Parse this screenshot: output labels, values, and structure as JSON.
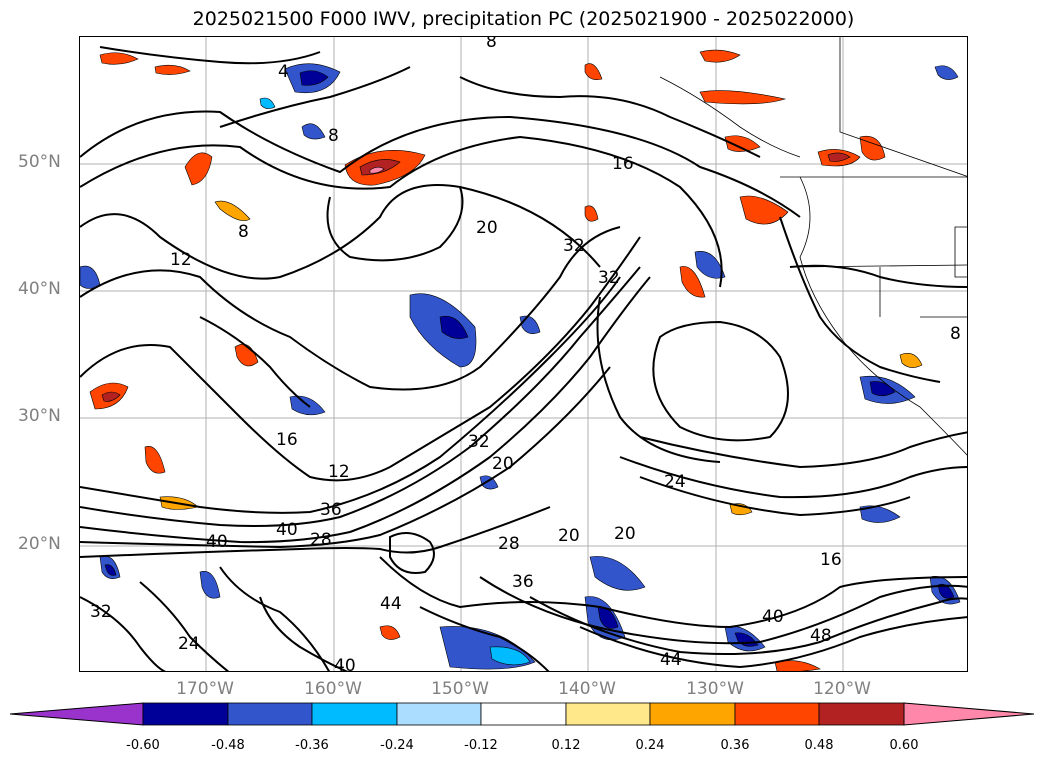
{
  "title": "2025021500 F000 IWV, precipitation PC (2025021900 - 2025022000)",
  "map": {
    "lat_labels": [
      "50°N",
      "40°N",
      "30°N",
      "20°N"
    ],
    "lon_labels": [
      "170°W",
      "160°W",
      "150°W",
      "140°W",
      "130°W",
      "120°W"
    ],
    "contour_labels": [
      "4",
      "8",
      "8",
      "8",
      "8",
      "12",
      "12",
      "16",
      "16",
      "16",
      "20",
      "20",
      "20",
      "20",
      "24",
      "24",
      "28",
      "28",
      "32",
      "32",
      "32",
      "32",
      "36",
      "36",
      "40",
      "40",
      "40",
      "40",
      "44",
      "44",
      "48"
    ],
    "label_color": "#808080",
    "contour_color": "#000000"
  },
  "colorbar": {
    "ticks": [
      "-0.60",
      "-0.48",
      "-0.36",
      "-0.24",
      "-0.12",
      "0.12",
      "0.24",
      "0.36",
      "0.48",
      "0.60"
    ],
    "colors": [
      "#9933cc",
      "#000099",
      "#3355cc",
      "#00bbff",
      "#aaddff",
      "#ffffff",
      "#ffe88a",
      "#ffa500",
      "#ff4500",
      "#b22222",
      "#ff88aa"
    ]
  }
}
